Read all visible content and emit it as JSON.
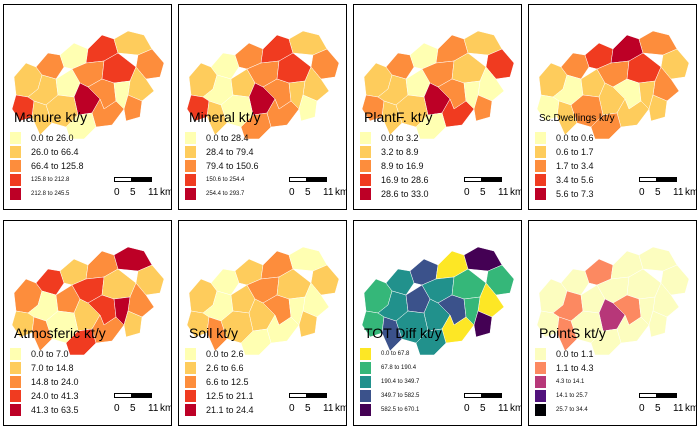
{
  "scale_bar": {
    "t0": "0",
    "t1": "5",
    "t2": "11",
    "unit": "km"
  },
  "panels": [
    {
      "title": "Manure kt/y",
      "small": false,
      "classes": [
        {
          "label": "0.0 to 26.0",
          "color": "#ffffb2",
          "tiny": false
        },
        {
          "label": "26.0 to 66.4",
          "color": "#fecc5c",
          "tiny": false
        },
        {
          "label": "66.4 to 125.8",
          "color": "#fd8d3c",
          "tiny": false
        },
        {
          "label": "125.8 to 212.8",
          "color": "#f03b20",
          "tiny": true
        },
        {
          "label": "212.8 to 245.5",
          "color": "#bd0026",
          "tiny": true
        }
      ]
    },
    {
      "title": "Mineral kt/y",
      "small": false,
      "classes": [
        {
          "label": "0.0 to 28.4",
          "color": "#ffffb2",
          "tiny": false
        },
        {
          "label": "28.4 to 79.4",
          "color": "#fecc5c",
          "tiny": false
        },
        {
          "label": "79.4 to 150.6",
          "color": "#fd8d3c",
          "tiny": false
        },
        {
          "label": "150.6 to 254.4",
          "color": "#f03b20",
          "tiny": true
        },
        {
          "label": "254.4 to 293.7",
          "color": "#bd0026",
          "tiny": true
        }
      ]
    },
    {
      "title": "PlantF. kt/y",
      "small": false,
      "classes": [
        {
          "label": "0.0 to 3.2",
          "color": "#ffffb2",
          "tiny": false
        },
        {
          "label": "3.2 to 8.9",
          "color": "#fecc5c",
          "tiny": false
        },
        {
          "label": "8.9 to 16.9",
          "color": "#fd8d3c",
          "tiny": false
        },
        {
          "label": "16.9 to 28.6",
          "color": "#f03b20",
          "tiny": false
        },
        {
          "label": "28.6 to 33.0",
          "color": "#bd0026",
          "tiny": false
        }
      ]
    },
    {
      "title": "Sc.Dwellings kt/y",
      "small": true,
      "classes": [
        {
          "label": "0.0 to 0.6",
          "color": "#ffffb2",
          "tiny": false
        },
        {
          "label": "0.6 to 1.7",
          "color": "#fecc5c",
          "tiny": false
        },
        {
          "label": "1.7 to 3.4",
          "color": "#fd8d3c",
          "tiny": false
        },
        {
          "label": "3.4 to 5.6",
          "color": "#f03b20",
          "tiny": false
        },
        {
          "label": "5.6 to 7.3",
          "color": "#bd0026",
          "tiny": false
        }
      ]
    },
    {
      "title": "Atmosferic kt/y",
      "small": false,
      "classes": [
        {
          "label": "0.0 to 7.0",
          "color": "#ffffb2",
          "tiny": false
        },
        {
          "label": "7.0 to 14.8",
          "color": "#fecc5c",
          "tiny": false
        },
        {
          "label": "14.8 to 24.0",
          "color": "#fd8d3c",
          "tiny": false
        },
        {
          "label": "24.0 to 41.3",
          "color": "#f03b20",
          "tiny": false
        },
        {
          "label": "41.3 to 63.5",
          "color": "#bd0026",
          "tiny": false
        }
      ]
    },
    {
      "title": "Soil kt/y",
      "small": false,
      "classes": [
        {
          "label": "0.0 to 2.6",
          "color": "#ffffb2",
          "tiny": false
        },
        {
          "label": "2.6 to 6.6",
          "color": "#fecc5c",
          "tiny": false
        },
        {
          "label": "6.6 to 12.5",
          "color": "#fd8d3c",
          "tiny": false
        },
        {
          "label": "12.5 to 21.1",
          "color": "#f03b20",
          "tiny": false
        },
        {
          "label": "21.1 to 24.4",
          "color": "#bd0026",
          "tiny": false
        }
      ]
    },
    {
      "title": "TOT Diff kt/y",
      "small": false,
      "classes": [
        {
          "label": "0.0 to 67.8",
          "color": "#fde725",
          "tiny": true
        },
        {
          "label": "67.8 to 190.4",
          "color": "#35b779",
          "tiny": true
        },
        {
          "label": "190.4 to 349.7",
          "color": "#21918c",
          "tiny": true
        },
        {
          "label": "349.7 to 582.5",
          "color": "#3b528b",
          "tiny": true
        },
        {
          "label": "582.5 to 670.1",
          "color": "#440154",
          "tiny": true
        }
      ]
    },
    {
      "title": "PointS kt/y",
      "small": false,
      "classes": [
        {
          "label": "0.0 to 1.1",
          "color": "#fcfdbf",
          "tiny": false
        },
        {
          "label": "1.1 to 4.3",
          "color": "#fc8961",
          "tiny": false
        },
        {
          "label": "4.3 to 14.1",
          "color": "#b73779",
          "tiny": true
        },
        {
          "label": "14.1 to 25.7",
          "color": "#51127c",
          "tiny": true
        },
        {
          "label": "25.7 to 34.4",
          "color": "#000004",
          "tiny": true
        }
      ]
    }
  ]
}
